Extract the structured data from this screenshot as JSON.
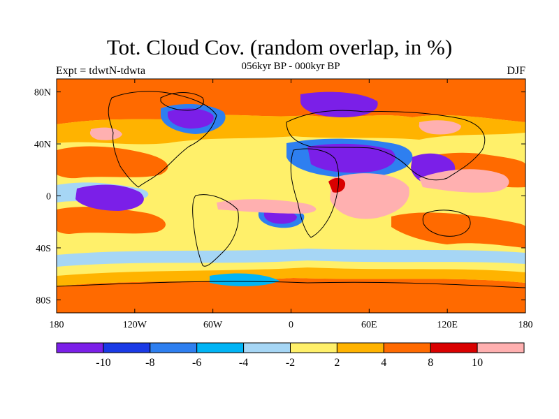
{
  "header": {
    "title": "Tot. Cloud Cov. (random overlap, in %)",
    "subtitle": "056kyr BP - 000kyr BP",
    "left_label": "Expt = tdwtN-tdwta",
    "right_label": "DJF"
  },
  "axes": {
    "lat_ticks": [
      "80N",
      "40N",
      "0",
      "40S",
      "80S"
    ],
    "lat_values": [
      80,
      40,
      0,
      -40,
      -80
    ],
    "lon_ticks": [
      "180",
      "120W",
      "60W",
      "0",
      "60E",
      "120E",
      "180"
    ],
    "lon_values": [
      -180,
      -120,
      -60,
      0,
      60,
      120,
      180
    ],
    "lat_range": [
      -90,
      90
    ],
    "lon_range": [
      -180,
      180
    ]
  },
  "colorbar": {
    "colors": [
      "#7b1fe8",
      "#1a3ae6",
      "#2e7ff0",
      "#00b4f5",
      "#a6d6f5",
      "#fff06a",
      "#ffb300",
      "#ff6a00",
      "#d90000",
      "#ffb0b0"
    ],
    "labels": [
      "-10",
      "-8",
      "-6",
      "-4",
      "-2",
      "2",
      "4",
      "8",
      "10"
    ]
  },
  "map_colors": {
    "background": "#fff06a",
    "coast": "#000000"
  }
}
